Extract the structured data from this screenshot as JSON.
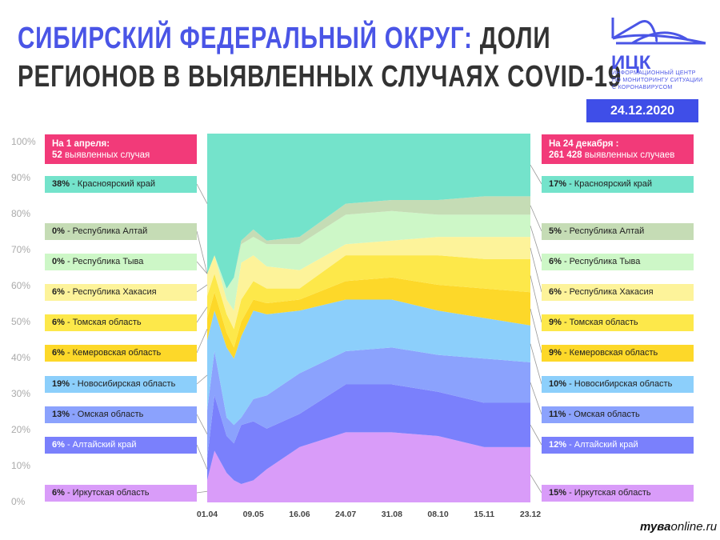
{
  "header": {
    "title_blue": "СИБИРСКИЙ ФЕДЕРАЛЬНЫЙ ОКРУГ:",
    "title_dark_1": " ДОЛИ",
    "title_dark_2": "РЕГИОНОВ В ВЫЯВЛЕННЫХ СЛУЧАЯХ COVID-19"
  },
  "logo": {
    "name": "ИЦК",
    "subtitle_lines": [
      "ИНФОРМАЦИОННЫЙ ЦЕНТР",
      "ПО МОНИТОРИНГУ СИТУАЦИИ",
      "С КОРОНАВИРУСОМ"
    ]
  },
  "date_badge": "24.12.2020",
  "left_header": {
    "line1": "На 1 апреля:",
    "count": "52",
    "line2_rest": " выявленных случая"
  },
  "right_header": {
    "line1": "На 24 декабря :",
    "count": "261 428",
    "line2_rest": " выявленных случаев"
  },
  "separator": " - ",
  "watermark": {
    "bold": "тува",
    "rest": "online.ru"
  },
  "colors": {
    "accent_pink": "#f23a79",
    "brand_blue": "#4a55e6"
  },
  "chart_data": {
    "type": "area",
    "stacked": "percent",
    "ylim": [
      0,
      100
    ],
    "yticks": [
      "0%",
      "10%",
      "20%",
      "30%",
      "40%",
      "50%",
      "60%",
      "70%",
      "80%",
      "90%",
      "100%"
    ],
    "xtick_labels": [
      "01.04",
      "09.05",
      "16.06",
      "24.07",
      "31.08",
      "08.10",
      "15.11",
      "23.12"
    ],
    "x": [
      "01.04",
      "07.04",
      "17.04",
      "23.04",
      "29.04",
      "09.05",
      "20.05",
      "16.06",
      "24.07",
      "31.08",
      "08.10",
      "15.11",
      "23.12"
    ],
    "series": [
      {
        "name": "Иркутская область",
        "color": "#d99cf9",
        "start_label": "6%",
        "end_label": "15%",
        "values": [
          6,
          14,
          8,
          6,
          5,
          6,
          9,
          15,
          19,
          19,
          18,
          15,
          15
        ]
      },
      {
        "name": "Алтайский край",
        "color": "#7a80fc",
        "start_label": "6%",
        "end_label": "12%",
        "values": [
          6,
          15,
          10,
          10,
          16,
          16,
          11,
          9,
          13,
          13,
          12,
          12,
          12
        ]
      },
      {
        "name": "Омская область",
        "color": "#8ba2fd",
        "start_label": "13%",
        "end_label": "11%",
        "values": [
          13,
          12,
          5,
          5,
          2,
          6,
          9,
          11,
          9,
          10,
          10,
          12,
          11
        ]
      },
      {
        "name": "Новосибирская область",
        "color": "#8ccffb",
        "start_label": "19%",
        "end_label": "10%",
        "values": [
          19,
          11,
          19,
          18,
          22,
          24,
          22,
          17,
          14,
          13,
          12,
          11,
          10
        ]
      },
      {
        "name": "Кемеровская область",
        "color": "#fdd829",
        "start_label": "6%",
        "end_label": "9%",
        "values": [
          6,
          5,
          4,
          3,
          4,
          3,
          3,
          3,
          5,
          6,
          7,
          8,
          9
        ]
      },
      {
        "name": "Томская область",
        "color": "#fde84a",
        "start_label": "6%",
        "end_label": "9%",
        "values": [
          6,
          5,
          5,
          5,
          6,
          5,
          4,
          3,
          7,
          6,
          8,
          8,
          9
        ]
      },
      {
        "name": "Республика Хакасия",
        "color": "#fdf39a",
        "start_label": "6%",
        "end_label": "6%",
        "values": [
          6,
          5,
          4,
          5,
          10,
          7,
          6,
          5,
          3,
          4,
          5,
          6,
          6
        ]
      },
      {
        "name": "Республика Тыва",
        "color": "#cdf7c7",
        "start_label": "0%",
        "end_label": "6%",
        "values": [
          0,
          0,
          3,
          9,
          5,
          5,
          6,
          7,
          8,
          8,
          6,
          6,
          6
        ]
      },
      {
        "name": "Республика Алтай",
        "color": "#c5dcb5",
        "start_label": "0%",
        "end_label": "5%",
        "values": [
          0,
          0,
          0,
          0,
          1,
          2,
          1,
          2,
          3,
          3,
          4,
          5,
          5
        ]
      },
      {
        "name": "Красноярский край",
        "color": "#74e3cb",
        "start_label": "38%",
        "end_label": "17%",
        "values": [
          38,
          33,
          42,
          39,
          29,
          26,
          29,
          28,
          19,
          18,
          18,
          17,
          17
        ]
      }
    ]
  }
}
